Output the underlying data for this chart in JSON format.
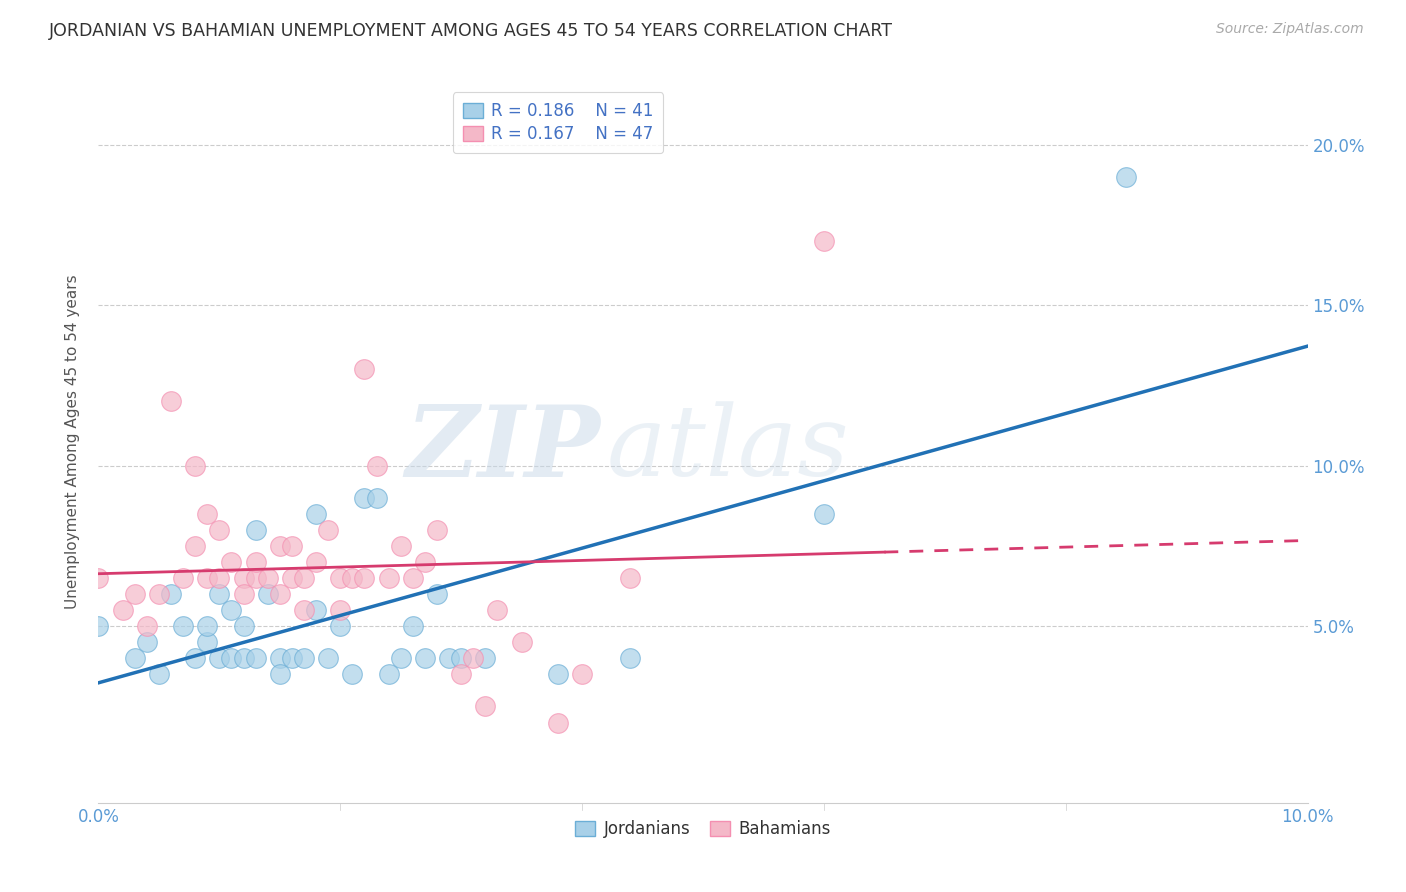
{
  "title": "JORDANIAN VS BAHAMIAN UNEMPLOYMENT AMONG AGES 45 TO 54 YEARS CORRELATION CHART",
  "source_text": "Source: ZipAtlas.com",
  "ylabel": "Unemployment Among Ages 45 to 54 years",
  "xlim": [
    0.0,
    0.1
  ],
  "ylim": [
    -0.005,
    0.22
  ],
  "yticks": [
    0.05,
    0.1,
    0.15,
    0.2
  ],
  "ytick_labels": [
    "5.0%",
    "10.0%",
    "15.0%",
    "20.0%"
  ],
  "R_jordanian": 0.186,
  "N_jordanian": 41,
  "R_bahamian": 0.167,
  "N_bahamian": 47,
  "jordanian_color": "#a8d0e8",
  "bahamian_color": "#f4b8c8",
  "jordanian_edge": "#6baed6",
  "bahamian_edge": "#f48fb1",
  "trend_jordanian_color": "#2171b5",
  "trend_bahamian_color": "#d63b6e",
  "jordanian_x": [
    0.0,
    0.003,
    0.004,
    0.005,
    0.006,
    0.007,
    0.008,
    0.009,
    0.009,
    0.01,
    0.01,
    0.011,
    0.011,
    0.012,
    0.012,
    0.013,
    0.013,
    0.014,
    0.015,
    0.015,
    0.016,
    0.017,
    0.018,
    0.018,
    0.019,
    0.02,
    0.021,
    0.022,
    0.023,
    0.024,
    0.025,
    0.026,
    0.027,
    0.028,
    0.029,
    0.03,
    0.032,
    0.038,
    0.044,
    0.06,
    0.085
  ],
  "jordanian_y": [
    0.05,
    0.04,
    0.045,
    0.035,
    0.06,
    0.05,
    0.04,
    0.045,
    0.05,
    0.04,
    0.06,
    0.04,
    0.055,
    0.04,
    0.05,
    0.04,
    0.08,
    0.06,
    0.04,
    0.035,
    0.04,
    0.04,
    0.085,
    0.055,
    0.04,
    0.05,
    0.035,
    0.09,
    0.09,
    0.035,
    0.04,
    0.05,
    0.04,
    0.06,
    0.04,
    0.04,
    0.04,
    0.035,
    0.04,
    0.085,
    0.19
  ],
  "bahamian_x": [
    0.0,
    0.002,
    0.003,
    0.004,
    0.005,
    0.006,
    0.007,
    0.008,
    0.008,
    0.009,
    0.009,
    0.01,
    0.01,
    0.011,
    0.012,
    0.012,
    0.013,
    0.013,
    0.014,
    0.015,
    0.015,
    0.016,
    0.016,
    0.017,
    0.017,
    0.018,
    0.019,
    0.02,
    0.02,
    0.021,
    0.022,
    0.022,
    0.023,
    0.024,
    0.025,
    0.026,
    0.027,
    0.028,
    0.03,
    0.031,
    0.032,
    0.033,
    0.035,
    0.038,
    0.04,
    0.044,
    0.06
  ],
  "bahamian_y": [
    0.065,
    0.055,
    0.06,
    0.05,
    0.06,
    0.12,
    0.065,
    0.1,
    0.075,
    0.085,
    0.065,
    0.08,
    0.065,
    0.07,
    0.065,
    0.06,
    0.065,
    0.07,
    0.065,
    0.06,
    0.075,
    0.075,
    0.065,
    0.055,
    0.065,
    0.07,
    0.08,
    0.055,
    0.065,
    0.065,
    0.065,
    0.13,
    0.1,
    0.065,
    0.075,
    0.065,
    0.07,
    0.08,
    0.035,
    0.04,
    0.025,
    0.055,
    0.045,
    0.02,
    0.035,
    0.065,
    0.17
  ],
  "watermark_zip": "ZIP",
  "watermark_atlas": "atlas",
  "background_color": "#ffffff",
  "grid_color": "#cccccc",
  "tick_color": "#5b9bd5",
  "label_color": "#555555"
}
